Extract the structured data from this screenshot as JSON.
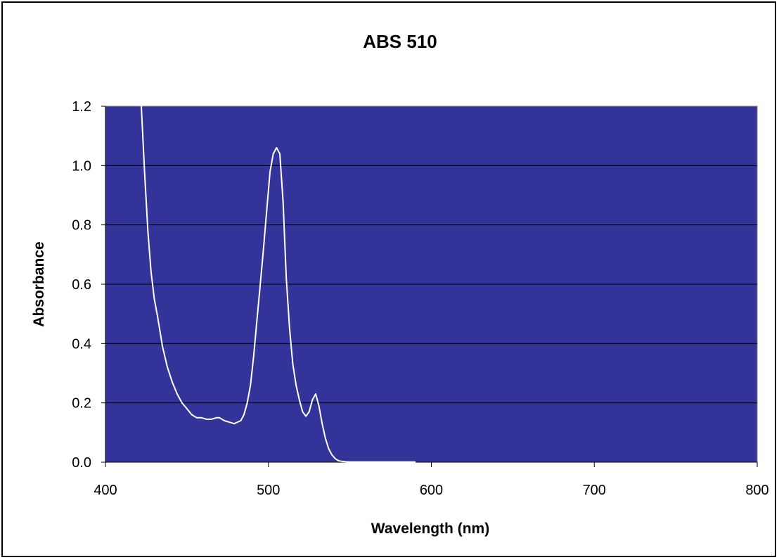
{
  "chart_data": {
    "type": "line",
    "title": "ABS 510",
    "xlabel": "Wavelength (nm)",
    "ylabel": "Absorbance",
    "xlim": [
      400,
      800
    ],
    "ylim": [
      0,
      1.2
    ],
    "x_ticks": [
      400,
      500,
      600,
      700,
      800
    ],
    "y_ticks": [
      "0.0",
      "0.2",
      "0.4",
      "0.6",
      "0.8",
      "1.0",
      "1.2"
    ],
    "grid": "horizontal",
    "legend": "none",
    "colors": {
      "plot_background": "#333399",
      "line": "#ffffff",
      "gridline": "#000000",
      "frame": "#000000"
    },
    "series": [
      {
        "x": [
          422,
          424,
          426,
          428,
          430,
          432,
          435,
          438,
          441,
          444,
          447,
          450,
          453,
          456,
          459,
          462,
          465,
          468,
          470,
          473,
          476,
          479,
          481,
          483,
          485,
          487,
          489,
          491,
          493,
          495,
          497,
          499,
          501,
          503,
          505,
          507,
          509,
          511,
          513,
          515,
          517,
          519,
          521,
          523,
          525,
          527,
          529,
          531,
          533,
          535,
          537,
          539,
          541,
          543,
          545,
          547,
          550,
          553,
          556,
          560,
          565,
          570,
          580,
          590
        ],
        "y": [
          1.2,
          0.98,
          0.78,
          0.64,
          0.55,
          0.49,
          0.39,
          0.32,
          0.27,
          0.23,
          0.2,
          0.18,
          0.16,
          0.15,
          0.15,
          0.145,
          0.145,
          0.15,
          0.15,
          0.14,
          0.135,
          0.13,
          0.135,
          0.14,
          0.16,
          0.2,
          0.26,
          0.36,
          0.48,
          0.6,
          0.72,
          0.85,
          0.98,
          1.04,
          1.06,
          1.04,
          0.88,
          0.62,
          0.45,
          0.33,
          0.26,
          0.21,
          0.17,
          0.155,
          0.17,
          0.21,
          0.23,
          0.19,
          0.13,
          0.08,
          0.045,
          0.025,
          0.012,
          0.005,
          0.003,
          0.002,
          0.001,
          0.001,
          0.001,
          0.001,
          0.001,
          0.001,
          0.001,
          0.001
        ]
      }
    ]
  }
}
